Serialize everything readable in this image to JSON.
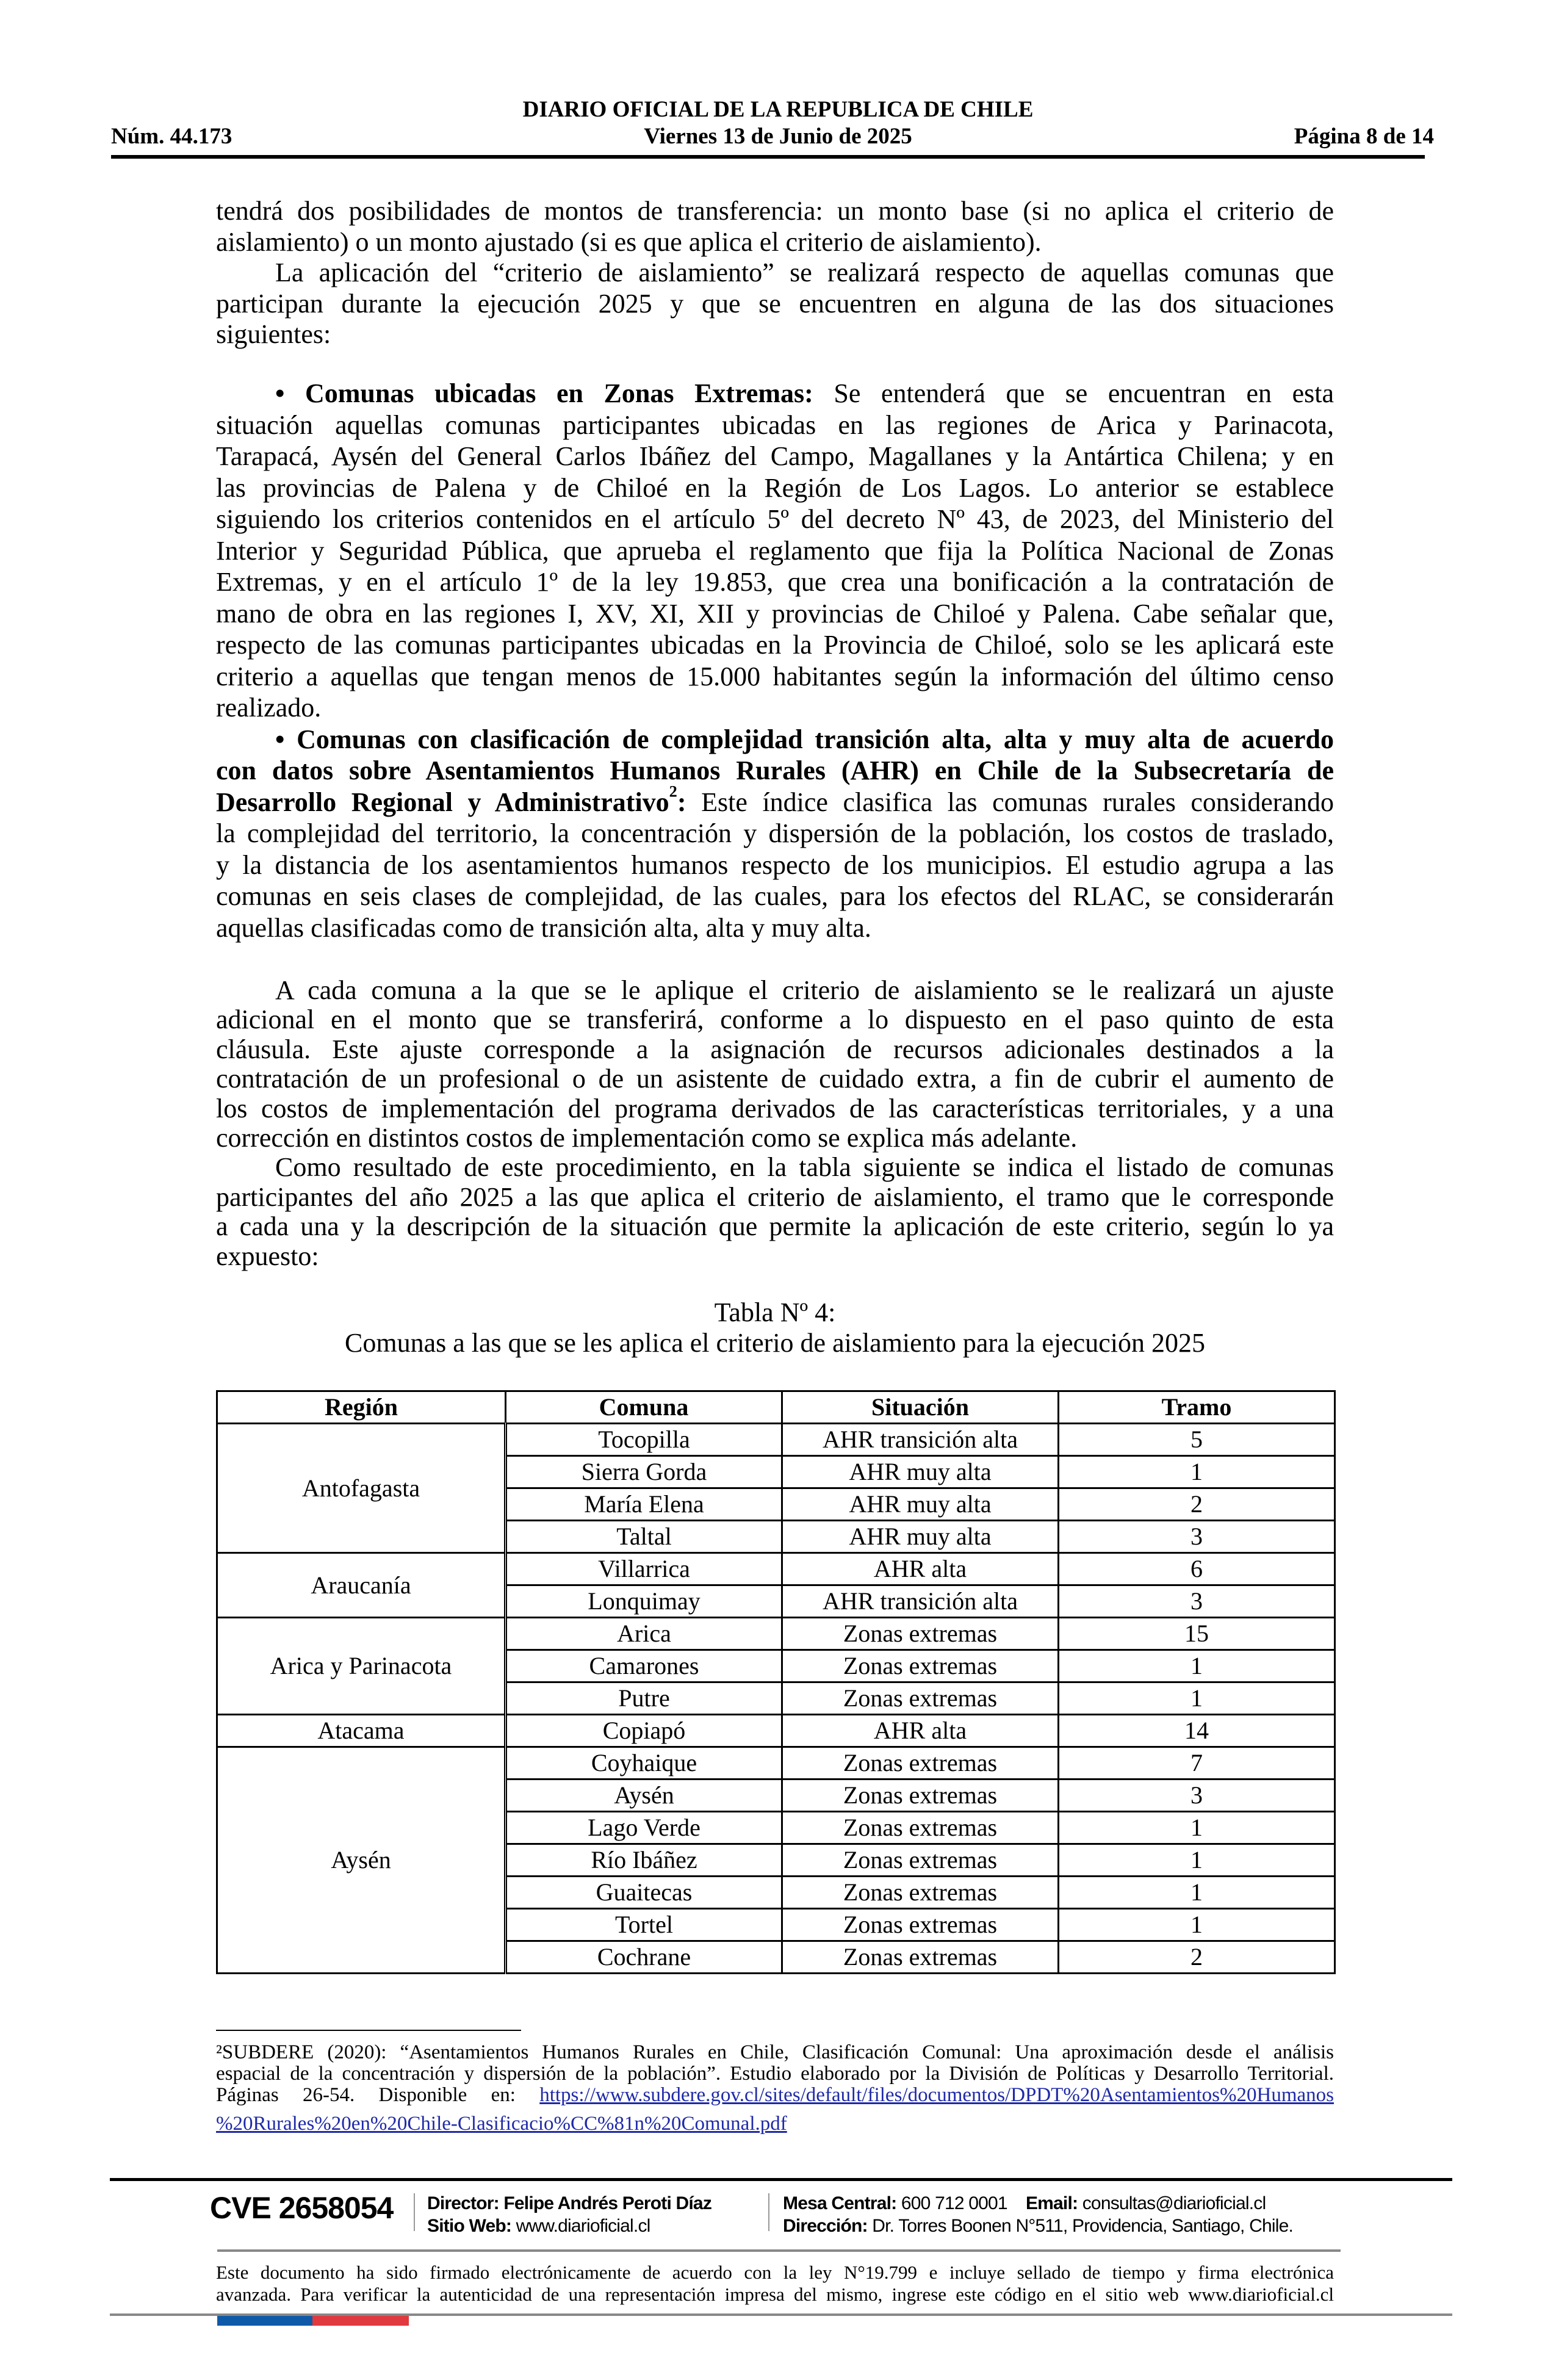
{
  "header": {
    "title": "DIARIO OFICIAL DE LA REPUBLICA DE CHILE",
    "number": "Núm. 44.173",
    "date": "Viernes 13 de Junio de 2025",
    "page": "Página 8 de 14"
  },
  "blocks": [
    {
      "paragraphs": [
        {
          "indent": false,
          "lines": [
            "tendrá dos posibilidades de montos de transferencia: un monto base (si no aplica el criterio de",
            "aislamiento) o un monto ajustado (si es que aplica el criterio de aislamiento)."
          ]
        },
        {
          "indent": true,
          "lines": [
            "La aplicación del “criterio de aislamiento” se realizará respecto de aquellas comunas que",
            "participan durante la ejecución 2025 y que se encuentren en alguna de las dos situaciones",
            "siguientes:"
          ]
        }
      ]
    },
    {
      "paragraphs": [
        {
          "indent": true,
          "lines": [
            [
              {
                "text": "• Comunas ubicadas en Zonas Extremas:",
                "bold": true
              },
              {
                "text": "  Se entenderá que se encuentran en esta"
              }
            ],
            "situación aquellas comunas participantes ubicadas en las regiones de Arica y Parinacota,",
            "Tarapacá, Aysén del General Carlos Ibáñez del Campo, Magallanes y la Antártica Chilena; y en",
            "las provincias de Palena y de Chiloé en la Región de Los Lagos. Lo anterior se establece",
            "siguiendo los criterios contenidos en el artículo 5º del decreto Nº 43, de 2023, del Ministerio del",
            "Interior y Seguridad Pública, que aprueba el reglamento que fija la Política Nacional de Zonas",
            "Extremas, y en el artículo 1º de la ley 19.853, que crea una bonificación a la contratación de",
            "mano de obra en las regiones I, XV, XI, XII y provincias de Chiloé y Palena. Cabe señalar que,",
            "respecto de las comunas participantes ubicadas en la Provincia de Chiloé, solo se les aplicará este",
            "criterio a aquellas que tengan menos de 15.000 habitantes según la información del último censo",
            "realizado."
          ]
        },
        {
          "indent": true,
          "lines": [
            [
              {
                "text": "• Comunas con clasificación de complejidad transición alta, alta y muy alta de acuerdo",
                "bold": true
              }
            ],
            [
              {
                "text": "con datos sobre Asentamientos Humanos Rurales (AHR) en Chile de la Subsecretaría de",
                "bold": true
              }
            ],
            [
              {
                "text": "Desarrollo Regional y Administrativo",
                "bold": true
              },
              {
                "text": "2",
                "bold": true,
                "sup": true
              },
              {
                "text": ":",
                "bold": true
              },
              {
                "text": " Este índice clasifica las comunas rurales considerando"
              }
            ],
            "la complejidad del territorio, la concentración y dispersión de la población, los costos de traslado,",
            "y la distancia de los asentamientos humanos respecto de los municipios. El estudio agrupa a las",
            "comunas en seis clases de complejidad, de las cuales, para los efectos del RLAC, se considerarán",
            "aquellas clasificadas como de transición alta, alta y muy alta."
          ]
        }
      ]
    },
    {
      "paragraphs": [
        {
          "indent": true,
          "lines": [
            "A cada comuna a la que se le aplique el criterio de aislamiento se le realizará un ajuste",
            "adicional en el monto que se transferirá, conforme a lo dispuesto en el paso quinto de esta",
            "cláusula. Este ajuste corresponde a la asignación de recursos adicionales destinados a la",
            "contratación de un profesional o de un asistente de cuidado extra, a fin de cubrir el aumento de",
            "los costos de implementación del programa derivados de las características territoriales, y a una",
            "corrección en distintos costos de implementación como se explica más adelante."
          ]
        },
        {
          "indent": true,
          "lines": [
            "Como resultado de este procedimiento, en la tabla siguiente se indica el listado de comunas",
            "participantes del año 2025 a las que aplica el criterio de aislamiento, el tramo que le corresponde",
            "a cada una y la descripción de la situación que permite la aplicación de este criterio, según lo ya",
            "expuesto:"
          ]
        }
      ]
    }
  ],
  "table": {
    "title": "Tabla Nº 4:",
    "subtitle": "Comunas a las que se les aplica el criterio de aislamiento para la ejecución 2025",
    "columns": [
      "Región",
      "Comuna",
      "Situación",
      "Tramo"
    ],
    "groups": [
      {
        "region": "Antofagasta",
        "rows": [
          [
            "Tocopilla",
            "AHR transición alta",
            "5"
          ],
          [
            "Sierra Gorda",
            "AHR muy alta",
            "1"
          ],
          [
            "María Elena",
            "AHR muy alta",
            "2"
          ],
          [
            "Taltal",
            "AHR muy alta",
            "3"
          ]
        ]
      },
      {
        "region": "Araucanía",
        "rows": [
          [
            "Villarrica",
            "AHR alta",
            "6"
          ],
          [
            "Lonquimay",
            "AHR transición alta",
            "3"
          ]
        ]
      },
      {
        "region": "Arica y Parinacota",
        "rows": [
          [
            "Arica",
            "Zonas extremas",
            "15"
          ],
          [
            "Camarones",
            "Zonas extremas",
            "1"
          ],
          [
            "Putre",
            "Zonas extremas",
            "1"
          ]
        ]
      },
      {
        "region": "Atacama",
        "rows": [
          [
            "Copiapó",
            "AHR alta",
            "14"
          ]
        ]
      },
      {
        "region": "Aysén",
        "rows": [
          [
            "Coyhaique",
            "Zonas extremas",
            "7"
          ],
          [
            "Aysén",
            "Zonas extremas",
            "3"
          ],
          [
            "Lago Verde",
            "Zonas extremas",
            "1"
          ],
          [
            "Río Ibáñez",
            "Zonas extremas",
            "1"
          ],
          [
            "Guaitecas",
            "Zonas extremas",
            "1"
          ],
          [
            "Tortel",
            "Zonas extremas",
            "1"
          ],
          [
            "Cochrane",
            "Zonas extremas",
            "2"
          ]
        ]
      }
    ]
  },
  "footnote": {
    "line1": "²SUBDERE (2020): “Asentamientos Humanos Rurales en Chile, Clasificación Comunal: Una aproximación desde el análisis",
    "line2": "espacial de la concentración y dispersión de la población”. Estudio elaborado por la División de Políticas y Desarrollo Territorial.",
    "line3_prefix": "Páginas 26-54. Disponible en: ",
    "link_part1": "https://www.subdere.gov.cl/sites/default/files/documentos/DPDT%20Asentamientos%20Humanos",
    "link_part2": "%20Rurales%20en%20Chile-Clasificacio%CC%81n%20Comunal.pdf"
  },
  "footer": {
    "cve": "CVE 2658054",
    "director_label": "Director:",
    "director": "Felipe Andrés Peroti Díaz",
    "web_label": "Sitio Web:",
    "web": "www.diarioficial.cl",
    "phone_label": "Mesa Central:",
    "phone": "600 712 0001",
    "email_label": "Email:",
    "email": "consultas@diarioficial.cl",
    "address_label": "Dirección:",
    "address": "Dr. Torres Boonen N°511, Providencia, Santiago, Chile.",
    "notice_line1": "Este documento ha sido firmado electrónicamente de acuerdo con la ley N°19.799 e incluye sellado de tiempo y firma electrónica",
    "notice_line2": "avanzada. Para verificar la autenticidad de una representación impresa del mismo, ingrese este código en el sitio web www.diarioficial.cl",
    "flag_colors": [
      "#0f5aa8",
      "#e0393e"
    ]
  }
}
